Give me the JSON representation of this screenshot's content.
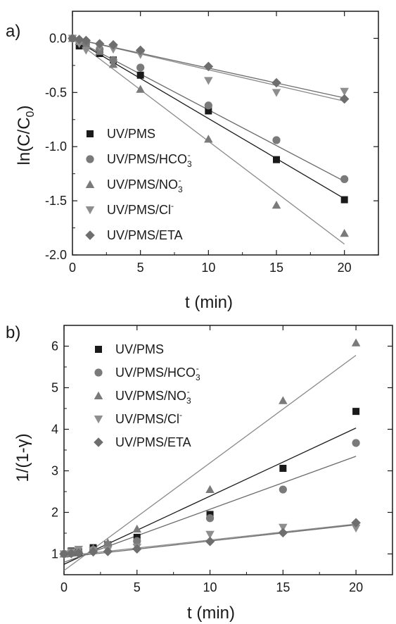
{
  "chart_data": [
    {
      "type": "scatter",
      "panel_label": "a)",
      "xlabel": "t (min)",
      "ylabel_main": "ln(C/C",
      "ylabel_sub": "0",
      "ylabel_end": ")",
      "xlim": [
        0,
        22.5
      ],
      "ylim": [
        -2.0,
        0.25
      ],
      "xticks": [
        "0",
        "5",
        "10",
        "15",
        "20"
      ],
      "yticks": [
        "0.0",
        "-0.5",
        "-1.0",
        "-1.5",
        "-2.0"
      ],
      "legend_position": "lower-left",
      "series": [
        {
          "name": "UV/PMS",
          "legend_main": "UV/PMS",
          "legend_sub": "",
          "legend_sup": "",
          "marker": "square",
          "color": "#1a1a1a",
          "line_color": "#1a1a1a",
          "x": [
            0,
            0.5,
            1,
            2,
            3,
            5,
            10,
            15,
            20
          ],
          "y": [
            0.0,
            -0.07,
            -0.05,
            -0.14,
            -0.2,
            -0.34,
            -0.67,
            -1.12,
            -1.49
          ],
          "fit": [
            [
              0,
              0.0
            ],
            [
              20,
              -1.48
            ]
          ]
        },
        {
          "name": "UV/PMS/HCO3-",
          "legend_main": "UV/PMS/HCO",
          "legend_sub": "3",
          "legend_sup": "-",
          "marker": "circle",
          "color": "#7a7a7a",
          "line_color": "#6a6a6a",
          "x": [
            0,
            0.5,
            1,
            2,
            3,
            5,
            10,
            15,
            20
          ],
          "y": [
            0.0,
            -0.02,
            -0.05,
            -0.1,
            -0.2,
            -0.27,
            -0.62,
            -0.94,
            -1.3
          ],
          "fit": [
            [
              0,
              0.0
            ],
            [
              20,
              -1.32
            ]
          ]
        },
        {
          "name": "UV/PMS/NO3-",
          "legend_main": "UV/PMS/NO",
          "legend_sub": "3",
          "legend_sup": "-",
          "marker": "triangle-up",
          "color": "#7a7a7a",
          "line_color": "#8a8a8a",
          "x": [
            0,
            0.5,
            1,
            2,
            3,
            5,
            10,
            15,
            20
          ],
          "y": [
            0.0,
            -0.03,
            -0.07,
            -0.12,
            -0.24,
            -0.47,
            -0.93,
            -1.54,
            -1.8
          ],
          "fit": [
            [
              0,
              0.0
            ],
            [
              20,
              -1.9
            ]
          ]
        },
        {
          "name": "UV/PMS/Cl-",
          "legend_main": "UV/PMS/Cl",
          "legend_sub": "",
          "legend_sup": "-",
          "marker": "triangle-down",
          "color": "#8e8e8e",
          "line_color": "#8a8a8a",
          "x": [
            0,
            0.5,
            1,
            2,
            3,
            5,
            10,
            15,
            20
          ],
          "y": [
            0.0,
            -0.05,
            -0.11,
            -0.08,
            -0.1,
            -0.15,
            -0.39,
            -0.5,
            -0.49
          ],
          "fit": [
            [
              0,
              0.0
            ],
            [
              20,
              -0.58
            ]
          ]
        },
        {
          "name": "UV/PMS/ETA",
          "legend_main": "UV/PMS/ETA",
          "legend_sub": "",
          "legend_sup": "",
          "marker": "diamond",
          "color": "#6e6e6e",
          "line_color": "#6e6e6e",
          "x": [
            0,
            0.5,
            1,
            2,
            3,
            5,
            10,
            15,
            20
          ],
          "y": [
            0.0,
            -0.01,
            -0.02,
            -0.05,
            -0.06,
            -0.11,
            -0.26,
            -0.41,
            -0.56
          ],
          "fit": [
            [
              0,
              0.0
            ],
            [
              20,
              -0.55
            ]
          ]
        }
      ]
    },
    {
      "type": "scatter",
      "panel_label": "b)",
      "xlabel": "t (min)",
      "ylabel": "1/(1-γ)",
      "xlim": [
        0,
        22.5
      ],
      "ylim": [
        0.5,
        6.5
      ],
      "xticks": [
        "0",
        "5",
        "10",
        "15",
        "20"
      ],
      "yticks": [
        "1",
        "2",
        "3",
        "4",
        "5",
        "6"
      ],
      "legend_position": "upper-left",
      "series": [
        {
          "name": "UV/PMS",
          "legend_main": "UV/PMS",
          "legend_sub": "",
          "legend_sup": "",
          "marker": "square",
          "color": "#1a1a1a",
          "line_color": "#1a1a1a",
          "x": [
            0,
            0.5,
            1,
            2,
            3,
            5,
            10,
            15,
            20
          ],
          "y": [
            1.0,
            1.07,
            1.05,
            1.15,
            1.22,
            1.4,
            1.95,
            3.06,
            4.43
          ],
          "fit": [
            [
              0,
              0.75
            ],
            [
              20,
              4.03
            ]
          ]
        },
        {
          "name": "UV/PMS/HCO3-",
          "legend_main": "UV/PMS/HCO",
          "legend_sub": "3",
          "legend_sup": "-",
          "marker": "circle",
          "color": "#7a7a7a",
          "line_color": "#6a6a6a",
          "x": [
            0,
            0.5,
            1,
            2,
            3,
            5,
            10,
            15,
            20
          ],
          "y": [
            1.0,
            1.02,
            1.05,
            1.1,
            1.22,
            1.31,
            1.86,
            2.55,
            3.67
          ],
          "fit": [
            [
              0,
              0.8
            ],
            [
              20,
              3.35
            ]
          ]
        },
        {
          "name": "UV/PMS/NO3-",
          "legend_main": "UV/PMS/NO",
          "legend_sub": "3",
          "legend_sup": "-",
          "marker": "triangle-up",
          "color": "#7a7a7a",
          "line_color": "#8a8a8a",
          "x": [
            0,
            0.5,
            1,
            2,
            3,
            5,
            10,
            15,
            20
          ],
          "y": [
            1.0,
            1.03,
            1.07,
            1.13,
            1.27,
            1.6,
            2.55,
            4.69,
            6.08
          ],
          "fit": [
            [
              0,
              0.6
            ],
            [
              20,
              5.78
            ]
          ]
        },
        {
          "name": "UV/PMS/Cl-",
          "legend_main": "UV/PMS/Cl",
          "legend_sub": "",
          "legend_sup": "-",
          "marker": "triangle-down",
          "color": "#8e8e8e",
          "line_color": "#8a8a8a",
          "x": [
            0,
            0.5,
            1,
            2,
            3,
            5,
            10,
            15,
            20
          ],
          "y": [
            1.0,
            1.05,
            1.11,
            1.08,
            1.1,
            1.16,
            1.47,
            1.64,
            1.62
          ],
          "fit": [
            [
              0,
              0.95
            ],
            [
              20,
              1.72
            ]
          ]
        },
        {
          "name": "UV/PMS/ETA",
          "legend_main": "UV/PMS/ETA",
          "legend_sub": "",
          "legend_sup": "",
          "marker": "diamond",
          "color": "#6e6e6e",
          "line_color": "#6e6e6e",
          "x": [
            0,
            0.5,
            1,
            2,
            3,
            5,
            10,
            15,
            20
          ],
          "y": [
            1.0,
            1.01,
            1.02,
            1.05,
            1.06,
            1.12,
            1.3,
            1.51,
            1.75
          ],
          "fit": [
            [
              0,
              0.92
            ],
            [
              20,
              1.7
            ]
          ]
        }
      ]
    }
  ]
}
